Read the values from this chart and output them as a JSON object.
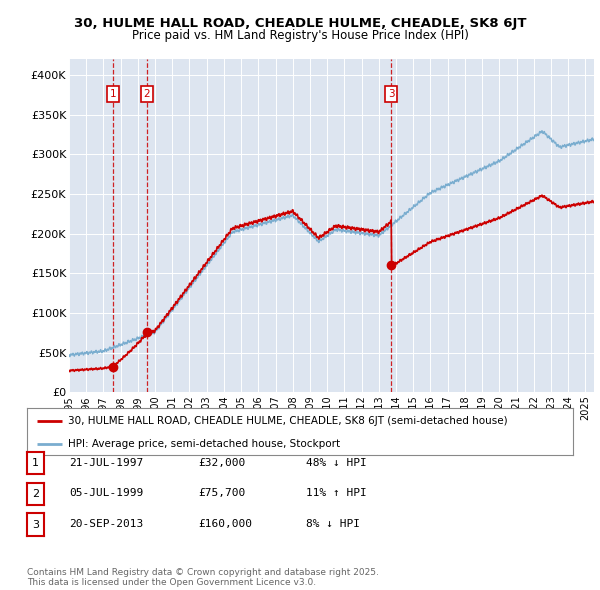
{
  "title1": "30, HULME HALL ROAD, CHEADLE HULME, CHEADLE, SK8 6JT",
  "title2": "Price paid vs. HM Land Registry's House Price Index (HPI)",
  "sale_dates": [
    1997.55,
    1999.51,
    2013.72
  ],
  "sale_prices": [
    32000,
    75700,
    160000
  ],
  "sale_labels": [
    "1",
    "2",
    "3"
  ],
  "sale_color": "#cc0000",
  "hpi_color": "#7aadcf",
  "background_color": "#dde5f0",
  "ylim": [
    0,
    420000
  ],
  "xlim": [
    1995.0,
    2025.5
  ],
  "yticks": [
    0,
    50000,
    100000,
    150000,
    200000,
    250000,
    300000,
    350000,
    400000
  ],
  "ytick_labels": [
    "£0",
    "£50K",
    "£100K",
    "£150K",
    "£200K",
    "£250K",
    "£300K",
    "£350K",
    "£400K"
  ],
  "xticks": [
    1995,
    1996,
    1997,
    1998,
    1999,
    2000,
    2001,
    2002,
    2003,
    2004,
    2005,
    2006,
    2007,
    2008,
    2009,
    2010,
    2011,
    2012,
    2013,
    2014,
    2015,
    2016,
    2017,
    2018,
    2019,
    2020,
    2021,
    2022,
    2023,
    2024,
    2025
  ],
  "legend_line1": "30, HULME HALL ROAD, CHEADLE HULME, CHEADLE, SK8 6JT (semi-detached house)",
  "legend_line2": "HPI: Average price, semi-detached house, Stockport",
  "table_rows": [
    {
      "num": "1",
      "date": "21-JUL-1997",
      "price": "£32,000",
      "hpi": "48% ↓ HPI"
    },
    {
      "num": "2",
      "date": "05-JUL-1999",
      "price": "£75,700",
      "hpi": "11% ↑ HPI"
    },
    {
      "num": "3",
      "date": "20-SEP-2013",
      "price": "£160,000",
      "hpi": "8% ↓ HPI"
    }
  ],
  "footnote": "Contains HM Land Registry data © Crown copyright and database right 2025.\nThis data is licensed under the Open Government Licence v3.0."
}
